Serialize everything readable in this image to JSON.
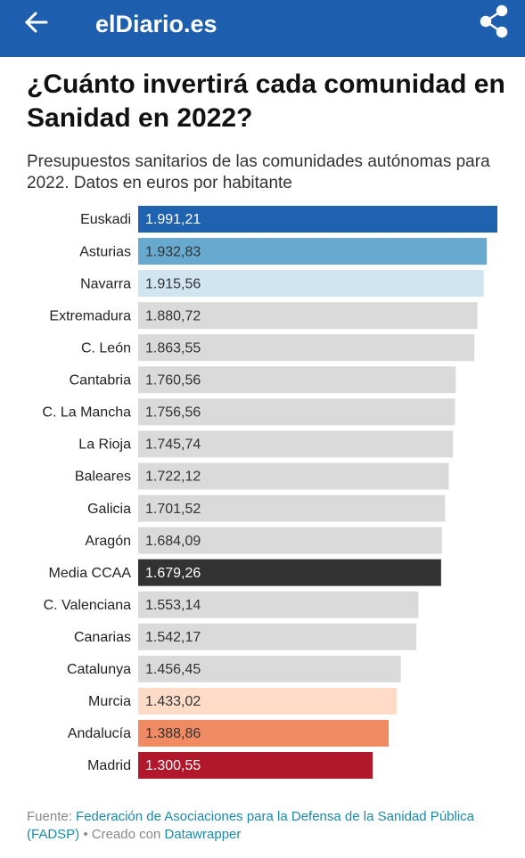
{
  "header": {
    "title": "elDiario.es"
  },
  "chart_data": {
    "type": "bar",
    "orientation": "horizontal",
    "title": "¿Cuánto invertirá cada comunidad en Sanidad en 2022?",
    "subtitle": "Presupuestos sanitarios de las comunidades autónomas para 2022. Datos en euros por habitante",
    "categories": [
      "Euskadi",
      "Asturias",
      "Navarra",
      "Extremadura",
      "C. León",
      "Cantabria",
      "C. La Mancha",
      "La Rioja",
      "Baleares",
      "Galicia",
      "Aragón",
      "Media CCAA",
      "C. Valenciana",
      "Canarias",
      "Catalunya",
      "Murcia",
      "Andalucía",
      "Madrid"
    ],
    "values": [
      1991.21,
      1932.83,
      1915.56,
      1880.72,
      1863.55,
      1760.56,
      1756.56,
      1745.74,
      1722.12,
      1701.52,
      1684.09,
      1679.26,
      1553.14,
      1542.17,
      1456.45,
      1433.02,
      1388.86,
      1300.55
    ],
    "value_labels": [
      "1.991,21",
      "1.932,83",
      "1.915,56",
      "1.880,72",
      "1.863,55",
      "1.760,56",
      "1.756,56",
      "1.745,74",
      "1.722,12",
      "1.701,52",
      "1.684,09",
      "1.679,26",
      "1.553,14",
      "1.542,17",
      "1.456,45",
      "1.433,02",
      "1.388,86",
      "1.300,55"
    ],
    "colors": [
      "#1f62b0",
      "#67a9cf",
      "#d1e5f0",
      "#dadada",
      "#dadada",
      "#dadada",
      "#dadada",
      "#dadada",
      "#dadada",
      "#dadada",
      "#dadada",
      "#333333",
      "#dadada",
      "#dadada",
      "#dadada",
      "#fddbc7",
      "#ef8a62",
      "#b2182b"
    ],
    "source_label": "Fuente:",
    "source": "Federación de Asociaciones para la Defensa de la Sanidad Pública (FADSP)",
    "credit_label": "• Creado con",
    "credit": "Datawrapper"
  }
}
